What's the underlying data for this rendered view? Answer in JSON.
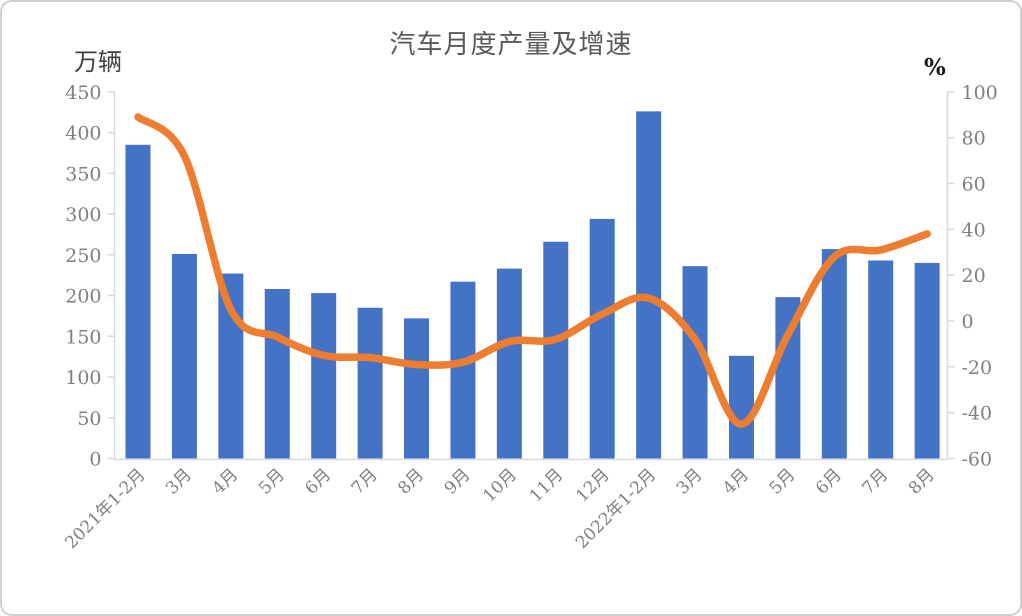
{
  "chart_data": {
    "type": "combo-bar-line",
    "title": "汽车月度产量及增速",
    "left_axis": {
      "label": "万辆",
      "min": 0,
      "max": 450,
      "step": 50
    },
    "right_axis": {
      "label": "%",
      "min": -60,
      "max": 100,
      "step": 20
    },
    "grid": "off",
    "legend": "none",
    "categories": [
      "2021年1-2月",
      "3月",
      "4月",
      "5月",
      "6月",
      "7月",
      "8月",
      "9月",
      "10月",
      "11月",
      "12月",
      "2022年1-2月",
      "3月",
      "4月",
      "5月",
      "6月",
      "7月",
      "8月"
    ],
    "series": [
      {
        "name": "月度产量",
        "type": "bar",
        "axis": "left",
        "color": "#4472C4",
        "values": [
          385,
          251,
          227,
          208,
          203,
          185,
          172,
          217,
          233,
          266,
          294,
          426,
          236,
          126,
          198,
          257,
          243,
          240
        ]
      },
      {
        "name": "增速",
        "type": "line",
        "axis": "right",
        "color": "#ED7D31",
        "values": [
          89,
          72,
          5,
          -7,
          -15,
          -16,
          -19,
          -18,
          -9,
          -8,
          3,
          10,
          -8,
          -45,
          -6,
          28,
          31,
          38
        ]
      }
    ],
    "axis_color": "#d9d9d9"
  }
}
